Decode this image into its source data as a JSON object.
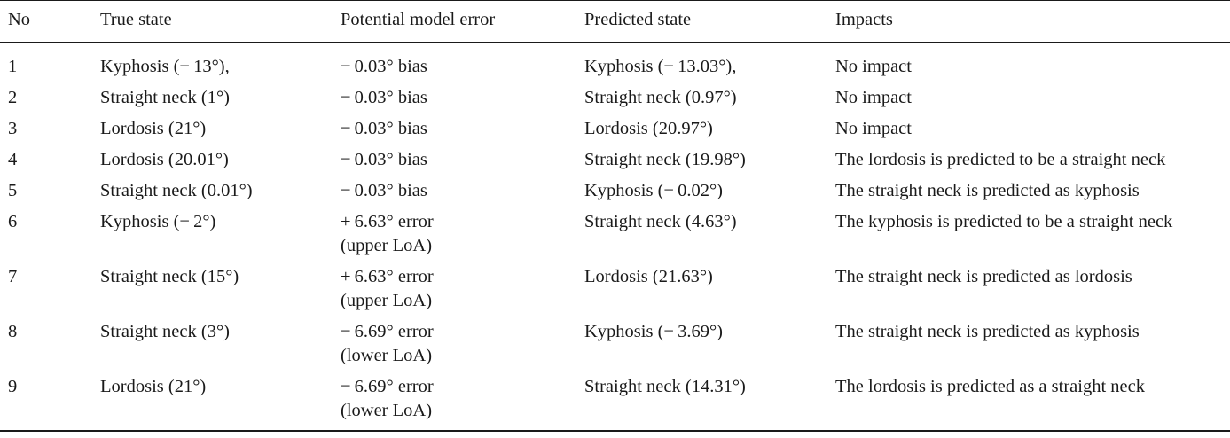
{
  "table": {
    "headers": [
      "No",
      "True state",
      "Potential model error",
      "Predicted state",
      "Impacts"
    ],
    "rows": [
      {
        "no": "1",
        "true_state": "Kyphosis (− 13°),",
        "error": [
          "− 0.03° bias"
        ],
        "predicted": "Kyphosis (− 13.03°),",
        "impact": "No impact"
      },
      {
        "no": "2",
        "true_state": "Straight neck (1°)",
        "error": [
          "− 0.03° bias"
        ],
        "predicted": "Straight neck (0.97°)",
        "impact": "No impact"
      },
      {
        "no": "3",
        "true_state": "Lordosis (21°)",
        "error": [
          "− 0.03° bias"
        ],
        "predicted": "Lordosis (20.97°)",
        "impact": "No impact"
      },
      {
        "no": "4",
        "true_state": "Lordosis (20.01°)",
        "error": [
          "− 0.03° bias"
        ],
        "predicted": "Straight neck (19.98°)",
        "impact": "The lordosis is predicted to be a straight neck"
      },
      {
        "no": "5",
        "true_state": "Straight neck (0.01°)",
        "error": [
          "− 0.03° bias"
        ],
        "predicted": "Kyphosis (− 0.02°)",
        "impact": "The straight neck is predicted as kyphosis"
      },
      {
        "no": "6",
        "true_state": "Kyphosis (− 2°)",
        "error": [
          "+ 6.63° error",
          "(upper LoA)"
        ],
        "predicted": "Straight neck (4.63°)",
        "impact": "The kyphosis is predicted to be a straight neck"
      },
      {
        "no": "7",
        "true_state": "Straight neck (15°)",
        "error": [
          "+ 6.63° error",
          "(upper LoA)"
        ],
        "predicted": "Lordosis (21.63°)",
        "impact": "The straight neck is predicted as lordosis"
      },
      {
        "no": "8",
        "true_state": "Straight neck (3°)",
        "error": [
          "− 6.69° error",
          "(lower LoA)"
        ],
        "predicted": "Kyphosis (− 3.69°)",
        "impact": "The straight neck is predicted as kyphosis"
      },
      {
        "no": "9",
        "true_state": "Lordosis (21°)",
        "error": [
          "− 6.69° error",
          "(lower LoA)"
        ],
        "predicted": "Straight neck (14.31°)",
        "impact": "The lordosis is predicted as a straight neck"
      }
    ]
  }
}
